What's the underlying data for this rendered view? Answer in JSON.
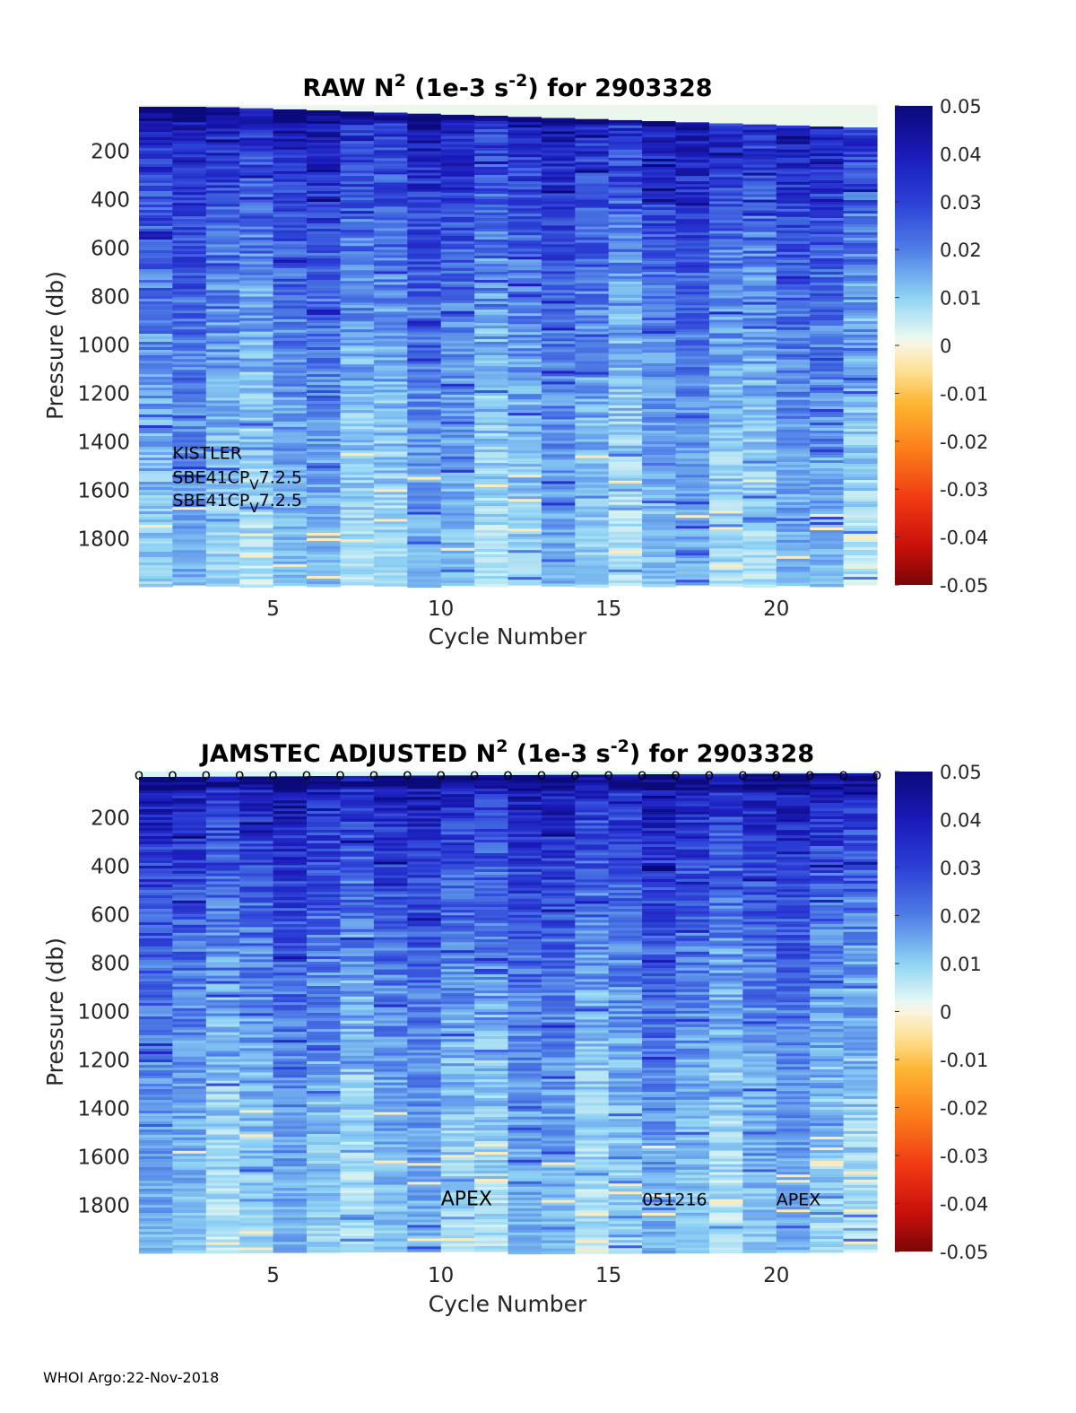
{
  "footer": "WHOI Argo:22-Nov-2018",
  "chart_data": [
    {
      "type": "heatmap",
      "title": {
        "prefix": "RAW N",
        "sup1": "2",
        "mid": " (1e-3 s",
        "sup2": "-2",
        "suffix": ") for 2903328"
      },
      "xlabel": "Cycle Number",
      "ylabel": "Pressure (db)",
      "xlim": [
        1,
        23
      ],
      "ylim": [
        1990,
        10
      ],
      "x": [
        1,
        2,
        3,
        4,
        5,
        6,
        7,
        8,
        9,
        10,
        11,
        12,
        13,
        14,
        15,
        16,
        17,
        18,
        19,
        20,
        21,
        22
      ],
      "xticks": [
        5,
        10,
        15,
        20
      ],
      "yticks": [
        200,
        400,
        600,
        800,
        1000,
        1200,
        1400,
        1600,
        1800
      ],
      "surface_pressure": [
        5,
        5,
        5,
        5,
        5,
        5,
        5,
        5,
        5,
        5,
        5,
        5,
        5,
        5,
        5,
        5,
        5,
        5,
        5,
        5,
        5,
        5
      ],
      "clim": [
        -0.05,
        0.05
      ],
      "colorbar_ticks": [
        0.05,
        0.04,
        0.03,
        0.02,
        0.01,
        0,
        -0.01,
        -0.02,
        -0.03,
        -0.04,
        -0.05
      ],
      "annotations": [
        {
          "text": "KISTLER",
          "cycle": 2,
          "pressure": 1470
        },
        {
          "text": "SBE41CP",
          "sub": "V",
          "tail": "7.2.5",
          "cycle": 2,
          "pressure": 1570
        },
        {
          "text": "SBE41CP",
          "sub": "V",
          "tail": "7.2.5",
          "cycle": 2,
          "pressure": 1665
        }
      ]
    },
    {
      "type": "heatmap",
      "title": {
        "prefix": "JAMSTEC  ADJUSTED N",
        "sup1": "2",
        "mid": " (1e-3 s",
        "sup2": "-2",
        "suffix": ") for 2903328"
      },
      "xlabel": "Cycle Number",
      "ylabel": "Pressure (db)",
      "xlim": [
        1,
        23
      ],
      "ylim": [
        1990,
        10
      ],
      "x": [
        1,
        2,
        3,
        4,
        5,
        6,
        7,
        8,
        9,
        10,
        11,
        12,
        13,
        14,
        15,
        16,
        17,
        18,
        19,
        20,
        21,
        22
      ],
      "xticks": [
        5,
        10,
        15,
        20
      ],
      "yticks": [
        200,
        400,
        600,
        800,
        1000,
        1200,
        1400,
        1600,
        1800
      ],
      "clim": [
        -0.05,
        0.05
      ],
      "colorbar_ticks": [
        0.05,
        0.04,
        0.03,
        0.02,
        0.01,
        0,
        -0.01,
        -0.02,
        -0.03,
        -0.04,
        -0.05
      ],
      "markers": {
        "symbol": "o",
        "cycles": [
          1,
          2,
          3,
          4,
          5,
          6,
          7,
          8,
          9,
          10,
          11,
          12,
          13,
          14,
          15,
          16,
          17,
          18,
          19,
          20,
          21,
          22,
          23
        ]
      },
      "annotations": [
        {
          "text": "APEX",
          "cycle": 10,
          "pressure": 1800
        },
        {
          "text": "051216",
          "cycle": 16,
          "pressure": 1800
        },
        {
          "text": "APEX",
          "cycle": 20,
          "pressure": 1800
        }
      ]
    }
  ]
}
